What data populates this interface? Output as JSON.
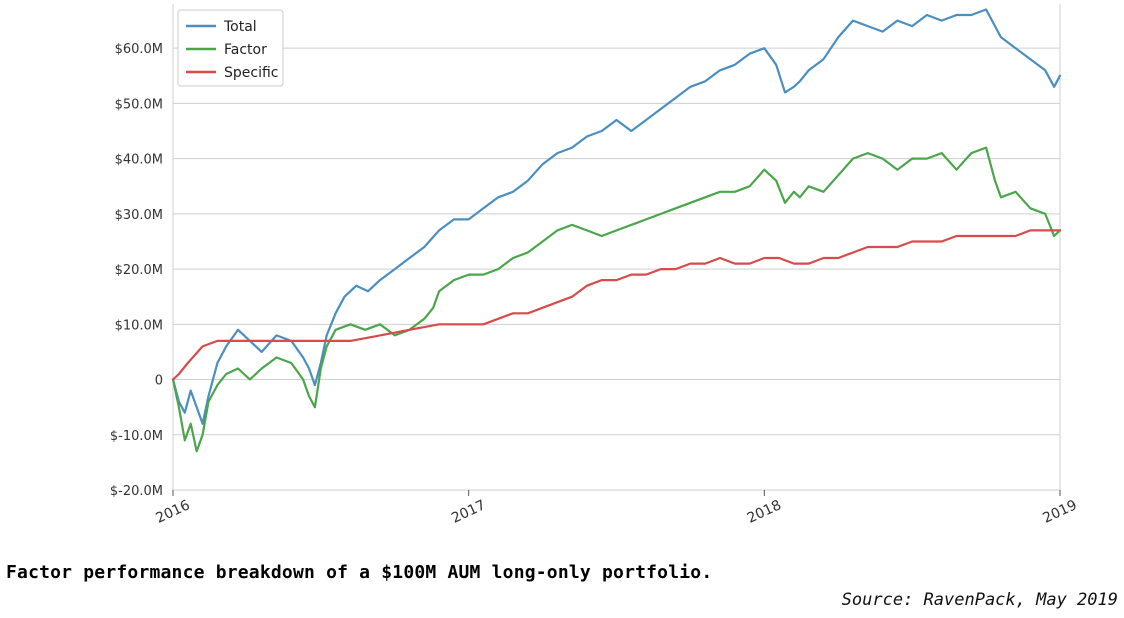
{
  "caption": "Factor performance breakdown of a $100M AUM long-only portfolio.",
  "source": "Source: RavenPack, May 2019",
  "chart_data": {
    "type": "line",
    "title": "",
    "xlabel": "",
    "ylabel": "",
    "xlim": [
      2016,
      2019
    ],
    "ylim": [
      -20,
      68
    ],
    "grid": true,
    "legend_position": "top-left",
    "y_ticks": [
      {
        "value": -20,
        "label": "$-20.0M"
      },
      {
        "value": -10,
        "label": "$-10.0M"
      },
      {
        "value": 0,
        "label": "0"
      },
      {
        "value": 10,
        "label": "$10.0M"
      },
      {
        "value": 20,
        "label": "$20.0M"
      },
      {
        "value": 30,
        "label": "$30.0M"
      },
      {
        "value": 40,
        "label": "$40.0M"
      },
      {
        "value": 50,
        "label": "$50.0M"
      },
      {
        "value": 60,
        "label": "$60.0M"
      }
    ],
    "x_ticks": [
      {
        "value": 2016,
        "label": "2016"
      },
      {
        "value": 2017,
        "label": "2017"
      },
      {
        "value": 2018,
        "label": "2018"
      },
      {
        "value": 2019,
        "label": "2019"
      }
    ],
    "series": [
      {
        "name": "Total",
        "color": "#4a8fbf",
        "x": [
          2016.0,
          2016.02,
          2016.04,
          2016.06,
          2016.08,
          2016.1,
          2016.12,
          2016.15,
          2016.18,
          2016.22,
          2016.26,
          2016.3,
          2016.35,
          2016.4,
          2016.44,
          2016.46,
          2016.48,
          2016.5,
          2016.52,
          2016.55,
          2016.58,
          2016.62,
          2016.66,
          2016.7,
          2016.75,
          2016.8,
          2016.85,
          2016.9,
          2016.95,
          2017.0,
          2017.05,
          2017.1,
          2017.15,
          2017.2,
          2017.25,
          2017.3,
          2017.35,
          2017.4,
          2017.45,
          2017.5,
          2017.55,
          2017.6,
          2017.65,
          2017.7,
          2017.75,
          2017.8,
          2017.85,
          2017.9,
          2017.95,
          2018.0,
          2018.04,
          2018.07,
          2018.1,
          2018.12,
          2018.15,
          2018.2,
          2018.25,
          2018.3,
          2018.35,
          2018.4,
          2018.45,
          2018.5,
          2018.55,
          2018.6,
          2018.65,
          2018.7,
          2018.75,
          2018.78,
          2018.8,
          2018.85,
          2018.9,
          2018.95,
          2018.98,
          2019.0
        ],
        "y": [
          0,
          -4,
          -6,
          -2,
          -5,
          -8,
          -3,
          3,
          6,
          9,
          7,
          5,
          8,
          7,
          4,
          2,
          -1,
          3,
          8,
          12,
          15,
          17,
          16,
          18,
          20,
          22,
          24,
          27,
          29,
          29,
          31,
          33,
          34,
          36,
          39,
          41,
          42,
          44,
          45,
          47,
          45,
          47,
          49,
          51,
          53,
          54,
          56,
          57,
          59,
          60,
          57,
          52,
          53,
          54,
          56,
          58,
          62,
          65,
          64,
          63,
          65,
          64,
          66,
          65,
          66,
          66,
          67,
          64,
          62,
          60,
          58,
          56,
          53,
          55
        ]
      },
      {
        "name": "Factor",
        "color": "#4aa64a",
        "x": [
          2016.0,
          2016.02,
          2016.04,
          2016.06,
          2016.08,
          2016.1,
          2016.12,
          2016.15,
          2016.18,
          2016.22,
          2016.26,
          2016.3,
          2016.35,
          2016.4,
          2016.44,
          2016.46,
          2016.48,
          2016.5,
          2016.52,
          2016.55,
          2016.6,
          2016.65,
          2016.7,
          2016.75,
          2016.8,
          2016.85,
          2016.88,
          2016.9,
          2016.95,
          2017.0,
          2017.05,
          2017.1,
          2017.15,
          2017.2,
          2017.25,
          2017.3,
          2017.35,
          2017.4,
          2017.45,
          2017.5,
          2017.55,
          2017.6,
          2017.65,
          2017.7,
          2017.75,
          2017.8,
          2017.85,
          2017.9,
          2017.95,
          2018.0,
          2018.04,
          2018.07,
          2018.1,
          2018.12,
          2018.15,
          2018.2,
          2018.25,
          2018.3,
          2018.35,
          2018.4,
          2018.45,
          2018.5,
          2018.55,
          2018.6,
          2018.65,
          2018.7,
          2018.75,
          2018.78,
          2018.8,
          2018.85,
          2018.9,
          2018.95,
          2018.98,
          2019.0
        ],
        "y": [
          0,
          -5,
          -11,
          -8,
          -13,
          -10,
          -4,
          -1,
          1,
          2,
          0,
          2,
          4,
          3,
          0,
          -3,
          -5,
          2,
          6,
          9,
          10,
          9,
          10,
          8,
          9,
          11,
          13,
          16,
          18,
          19,
          19,
          20,
          22,
          23,
          25,
          27,
          28,
          27,
          26,
          27,
          28,
          29,
          30,
          31,
          32,
          33,
          34,
          34,
          35,
          38,
          36,
          32,
          34,
          33,
          35,
          34,
          37,
          40,
          41,
          40,
          38,
          40,
          40,
          41,
          38,
          41,
          42,
          36,
          33,
          34,
          31,
          30,
          26,
          27
        ]
      },
      {
        "name": "Specific",
        "color": "#d94a4a",
        "x": [
          2016.0,
          2016.02,
          2016.05,
          2016.1,
          2016.15,
          2016.2,
          2016.3,
          2016.4,
          2016.5,
          2016.6,
          2016.7,
          2016.8,
          2016.9,
          2017.0,
          2017.05,
          2017.1,
          2017.15,
          2017.2,
          2017.3,
          2017.35,
          2017.4,
          2017.45,
          2017.5,
          2017.55,
          2017.6,
          2017.65,
          2017.7,
          2017.75,
          2017.8,
          2017.85,
          2017.9,
          2017.95,
          2018.0,
          2018.05,
          2018.1,
          2018.15,
          2018.2,
          2018.25,
          2018.3,
          2018.35,
          2018.4,
          2018.45,
          2018.5,
          2018.55,
          2018.6,
          2018.65,
          2018.7,
          2018.75,
          2018.8,
          2018.85,
          2018.9,
          2018.95,
          2019.0
        ],
        "y": [
          0,
          1,
          3,
          6,
          7,
          7,
          7,
          7,
          7,
          7,
          8,
          9,
          10,
          10,
          10,
          11,
          12,
          12,
          14,
          15,
          17,
          18,
          18,
          19,
          19,
          20,
          20,
          21,
          21,
          22,
          21,
          21,
          22,
          22,
          21,
          21,
          22,
          22,
          23,
          24,
          24,
          24,
          25,
          25,
          25,
          26,
          26,
          26,
          26,
          26,
          27,
          27,
          27
        ]
      }
    ]
  }
}
